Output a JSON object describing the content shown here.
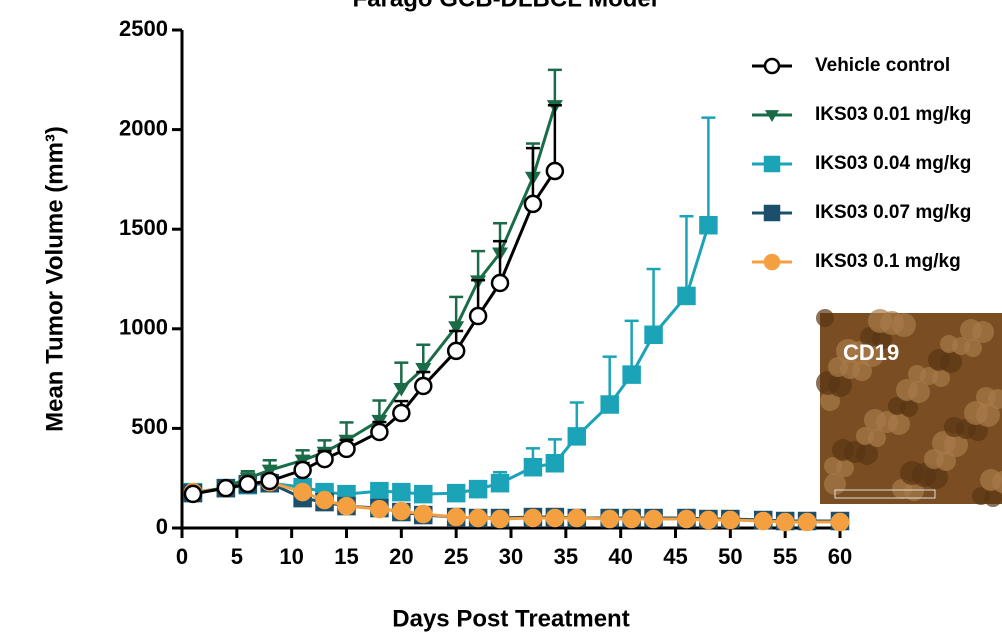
{
  "chart_data": {
    "type": "line",
    "title": "Farago GCB-DLBCL Model",
    "x_label": "Days Post Treatment",
    "y_label": "Mean Tumor Volume (mm³)",
    "inset_label": "CD19",
    "xlim": [
      0,
      60
    ],
    "xticks": [
      0,
      5,
      10,
      15,
      20,
      25,
      30,
      35,
      40,
      45,
      50,
      55,
      60
    ],
    "ylim": [
      0,
      2500
    ],
    "yticks": [
      0,
      500,
      1000,
      1500,
      2000,
      2500
    ],
    "series": [
      {
        "name": "Vehicle control",
        "color": "#000000",
        "marker": "circle-open",
        "x": [
          1,
          4,
          6,
          8,
          11,
          13,
          15,
          18,
          20,
          22,
          25,
          27,
          29,
          32,
          34
        ],
        "values": [
          171,
          200,
          221,
          236,
          291,
          346,
          397,
          482,
          577,
          713,
          889,
          1064,
          1230,
          1627,
          1792
        ],
        "errors": [
          20,
          20,
          25,
          30,
          35,
          40,
          45,
          50,
          60,
          70,
          100,
          180,
          210,
          280,
          330
        ]
      },
      {
        "name": "IKS03 0.01 mg/kg",
        "color": "#1a6b47",
        "marker": "triangle-down",
        "x": [
          1,
          4,
          6,
          8,
          11,
          13,
          15,
          18,
          20,
          22,
          25,
          27,
          29,
          32,
          34
        ],
        "values": [
          170,
          205,
          250,
          290,
          340,
          380,
          440,
          540,
          700,
          800,
          1010,
          1240,
          1380,
          1760,
          2120
        ],
        "errors": [
          20,
          25,
          35,
          50,
          50,
          60,
          90,
          100,
          130,
          120,
          150,
          150,
          150,
          170,
          180
        ]
      },
      {
        "name": "IKS03 0.04 mg/kg",
        "color": "#1ba3b8",
        "marker": "square",
        "x": [
          1,
          4,
          6,
          8,
          11,
          13,
          15,
          18,
          20,
          22,
          25,
          27,
          29,
          32,
          34,
          36,
          39,
          41,
          43,
          46,
          48
        ],
        "values": [
          180,
          200,
          215,
          225,
          205,
          180,
          170,
          185,
          180,
          170,
          175,
          195,
          225,
          305,
          325,
          460,
          620,
          770,
          970,
          1165,
          1520
        ],
        "errors": [
          15,
          15,
          15,
          20,
          20,
          20,
          20,
          20,
          20,
          20,
          25,
          40,
          55,
          95,
          120,
          170,
          240,
          270,
          330,
          400,
          540
        ]
      },
      {
        "name": "IKS03 0.07 mg/kg",
        "color": "#1b4f6b",
        "marker": "square-open",
        "x": [
          1,
          4,
          6,
          8,
          11,
          13,
          15,
          18,
          20,
          22,
          25,
          27,
          29,
          32,
          34,
          36,
          39,
          41,
          43,
          46,
          48,
          50,
          53,
          55,
          57,
          60
        ],
        "values": [
          175,
          200,
          220,
          225,
          150,
          130,
          110,
          100,
          80,
          65,
          55,
          50,
          50,
          55,
          55,
          50,
          50,
          50,
          50,
          50,
          45,
          45,
          40,
          35,
          35,
          35
        ]
      },
      {
        "name": "IKS03 0.1 mg/kg",
        "color": "#f5a040",
        "marker": "circle",
        "x": [
          1,
          4,
          6,
          8,
          11,
          13,
          15,
          18,
          20,
          22,
          25,
          27,
          29,
          32,
          34,
          36,
          39,
          41,
          43,
          46,
          48,
          50,
          53,
          55,
          57,
          60
        ],
        "values": [
          180,
          200,
          225,
          230,
          180,
          140,
          110,
          95,
          85,
          70,
          55,
          50,
          45,
          50,
          50,
          50,
          45,
          45,
          45,
          45,
          40,
          40,
          35,
          30,
          30,
          30
        ]
      }
    ]
  }
}
